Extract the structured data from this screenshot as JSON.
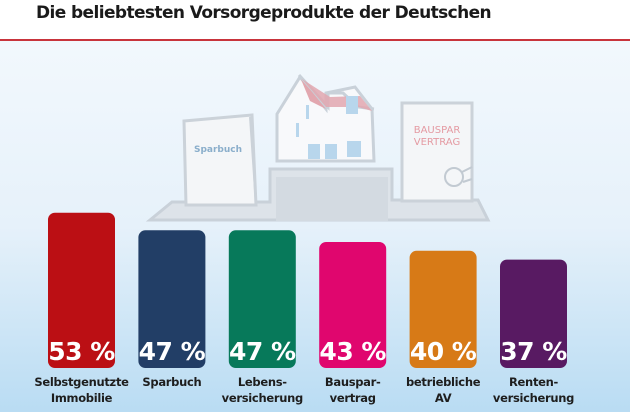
{
  "header": {
    "title": "Die beliebtesten Vorsorgeprodukte der Deutschen"
  },
  "illustration": {
    "book_label": "Sparbuch",
    "contract_label_line1": "BAUSPAR",
    "contract_label_line2": "VERTRAG"
  },
  "chart_data": {
    "type": "bar",
    "title": "Die beliebtesten Vorsorgeprodukte der Deutschen",
    "xlabel": "",
    "ylabel": "",
    "ylim": [
      0,
      100
    ],
    "unit": "%",
    "grid": false,
    "legend": "none",
    "categories": [
      [
        "Selbstgenutzte",
        "Immobilie"
      ],
      [
        "Sparbuch"
      ],
      [
        "Lebens-",
        "versicherung"
      ],
      [
        "Bauspar-",
        "vertrag"
      ],
      [
        "betriebliche",
        "AV"
      ],
      [
        "Renten-",
        "versicherung"
      ]
    ],
    "values": [
      53,
      47,
      47,
      43,
      40,
      37
    ],
    "value_labels": [
      "53 %",
      "47 %",
      "47 %",
      "43 %",
      "40 %",
      "37 %"
    ],
    "colors": [
      "#bb0f14",
      "#223e66",
      "#07795a",
      "#e0066e",
      "#d77a17",
      "#581a62"
    ]
  }
}
